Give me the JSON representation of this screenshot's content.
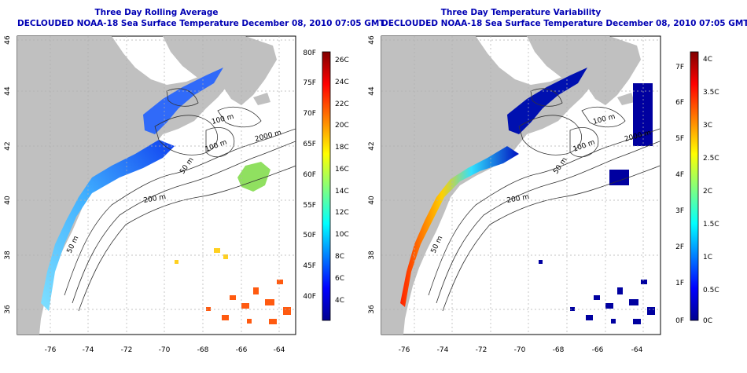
{
  "left_panel": {
    "title": "Three Day Rolling Average",
    "subtitle": "DECLOUDED NOAA-18 Sea Surface Temperature December 08, 2010 07:05 GMT",
    "colorbar": {
      "left_labels": [
        "80F",
        "75F",
        "70F",
        "65F",
        "60F",
        "55F",
        "50F",
        "45F",
        "40F"
      ],
      "right_labels": [
        "26C",
        "24C",
        "22C",
        "20C",
        "18C",
        "16C",
        "14C",
        "12C",
        "10C",
        "8C",
        "6C",
        "4C"
      ]
    }
  },
  "right_panel": {
    "title": "Three Day Temperature Variability",
    "subtitle": "DECLOUDED NOAA-18 Sea Surface Temperature December 08, 2010 07:05 GMT",
    "colorbar": {
      "left_labels": [
        "7F",
        "6F",
        "5F",
        "4F",
        "3F",
        "2F",
        "1F",
        "0F"
      ],
      "right_labels": [
        "4C",
        "3.5C",
        "3C",
        "2.5C",
        "2C",
        "1.5C",
        "1C",
        "0.5C",
        "0C"
      ]
    }
  },
  "axes": {
    "x_ticks": [
      "-76",
      "-74",
      "-72",
      "-70",
      "-68",
      "-66",
      "-64"
    ],
    "y_ticks": [
      "46",
      "44",
      "42",
      "40",
      "38",
      "36"
    ]
  },
  "depth_labels": [
    "100 m",
    "100 m",
    "2000 m",
    "50 m",
    "200 m",
    "50 m"
  ],
  "colors": {
    "land": "#c0c0c0",
    "title": "#0000b4",
    "contour": "#333333",
    "grid": "#b0b0b0"
  }
}
